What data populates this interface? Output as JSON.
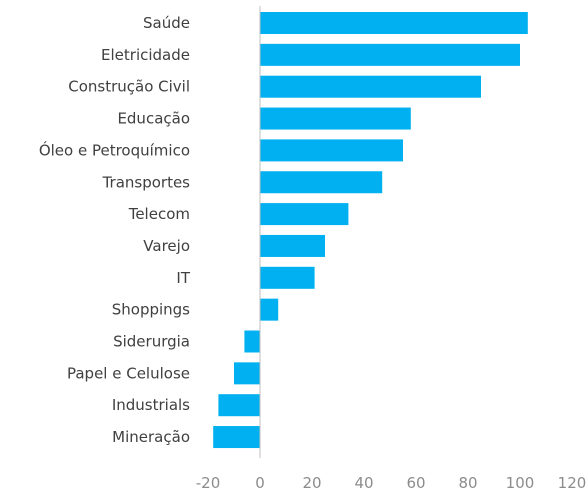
{
  "chart_data": {
    "type": "bar",
    "orientation": "horizontal",
    "title": "",
    "xlabel": "",
    "ylabel": "",
    "categories": [
      "Saúde",
      "Eletricidade",
      "Construção Civil",
      "Educação",
      "Óleo e Petroquímico",
      "Transportes",
      "Telecom",
      "Varejo",
      "IT",
      "Shoppings",
      "Siderurgia",
      "Papel e Celulose",
      "Industrials",
      "Mineração"
    ],
    "values": [
      103,
      100,
      85,
      58,
      55,
      47,
      34,
      25,
      21,
      7,
      -6,
      -10,
      -16,
      -18
    ],
    "xlim": [
      -20,
      120
    ],
    "xticks": [
      "-20",
      "0",
      "20",
      "40",
      "60",
      "80",
      "100",
      "120"
    ],
    "tick_values": [
      -20,
      0,
      20,
      40,
      60,
      80,
      100,
      120
    ],
    "grid": false,
    "legend": "none",
    "colors": {
      "bar": "#00b0f0",
      "axis": "#bfbfbf",
      "label": "#404040",
      "tick": "#8c8c8c"
    }
  }
}
